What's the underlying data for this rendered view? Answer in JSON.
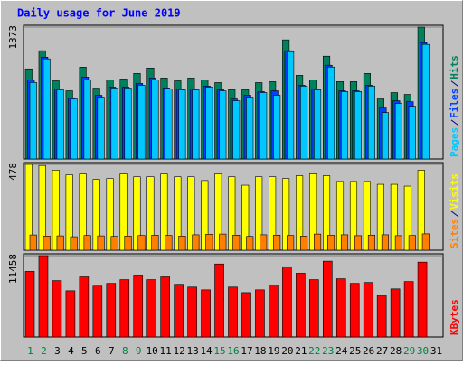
{
  "chart_data": {
    "type": "bar",
    "title": "Daily usage for June 2019",
    "categories": [
      "1",
      "2",
      "3",
      "4",
      "5",
      "6",
      "7",
      "8",
      "9",
      "10",
      "11",
      "12",
      "13",
      "14",
      "15",
      "16",
      "17",
      "18",
      "19",
      "20",
      "21",
      "22",
      "23",
      "24",
      "25",
      "26",
      "27",
      "28",
      "29",
      "30",
      "31"
    ],
    "category_colors": [
      "#008040",
      "#008040",
      "#000000",
      "#000000",
      "#000000",
      "#000000",
      "#000000",
      "#008040",
      "#008040",
      "#000000",
      "#000000",
      "#000000",
      "#000000",
      "#000000",
      "#008040",
      "#008040",
      "#000000",
      "#000000",
      "#000000",
      "#000000",
      "#000000",
      "#008040",
      "#008040",
      "#000000",
      "#000000",
      "#000000",
      "#000000",
      "#000000",
      "#008040",
      "#008040",
      "#000000"
    ],
    "panels": [
      {
        "ylim": [
          0,
          1373
        ],
        "yticks": [
          1373
        ],
        "series": [
          {
            "name": "Hits",
            "color": "#00805c",
            "values": [
              938,
              1127,
              814,
              710,
              956,
              738,
              824,
              833,
              890,
              947,
              843,
              814,
              843,
              824,
              795,
              720,
              720,
              795,
              805,
              1240,
              871,
              824,
              1070,
              805,
              805,
              890,
              625,
              691,
              672,
              1373,
              0
            ]
          },
          {
            "name": "Files",
            "color": "#0040ff",
            "values": [
              825,
              1060,
              729,
              634,
              852,
              663,
              748,
              748,
              786,
              843,
              739,
              729,
              729,
              758,
              720,
              625,
              663,
              701,
              710,
              1127,
              767,
              729,
              976,
              710,
              710,
              767,
              540,
              606,
              596,
              1212,
              0
            ]
          },
          {
            "name": "Pages",
            "color": "#00c8ff",
            "values": [
              796,
              1042,
              720,
              625,
              824,
              644,
              739,
              739,
              767,
              824,
              729,
              720,
              720,
              748,
              710,
              606,
              644,
              691,
              663,
              1117,
              758,
              720,
              957,
              701,
              701,
              758,
              483,
              578,
              549,
              1193,
              0
            ]
          }
        ]
      },
      {
        "ylim": [
          0,
          478
        ],
        "yticks": [
          478
        ],
        "series": [
          {
            "name": "Visits",
            "color": "#ffff00",
            "values": [
              478,
              472,
              446,
              420,
              425,
              394,
              399,
              425,
              409,
              409,
              425,
              409,
              409,
              388,
              425,
              409,
              362,
              409,
              409,
              399,
              415,
              425,
              415,
              383,
              383,
              383,
              367,
              367,
              357,
              446,
              0
            ]
          },
          {
            "name": "Sites",
            "color": "#ff8000",
            "values": [
              85,
              79,
              80,
              75,
              82,
              80,
              77,
              79,
              82,
              84,
              82,
              79,
              86,
              89,
              90,
              84,
              77,
              86,
              84,
              82,
              79,
              90,
              83,
              86,
              81,
              84,
              86,
              81,
              82,
              91,
              0
            ]
          }
        ]
      },
      {
        "ylim": [
          0,
          11458
        ],
        "yticks": [
          11458
        ],
        "series": [
          {
            "name": "KBytes",
            "color": "#ff0000",
            "values": [
              9244,
              11458,
              7943,
              6510,
              8464,
              7161,
              7552,
              8073,
              8724,
              8073,
              8464,
              7422,
              7031,
              6640,
              10286,
              7031,
              6250,
              6640,
              7291,
              9896,
              8984,
              8073,
              10677,
              8203,
              7552,
              7682,
              5859,
              6771,
              7812,
              10547,
              0
            ]
          }
        ]
      }
    ]
  }
}
